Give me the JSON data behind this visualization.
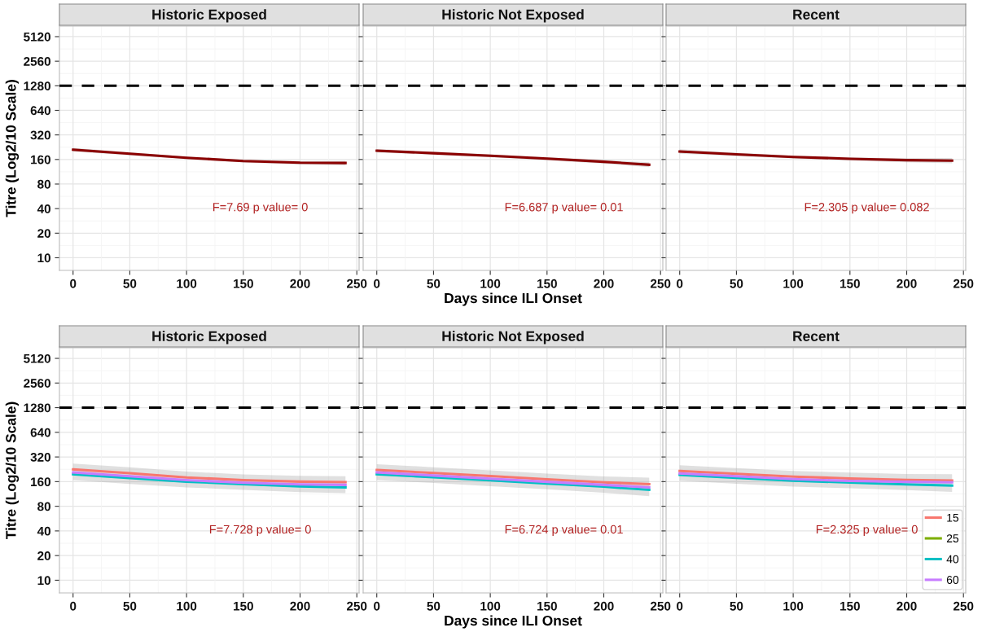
{
  "chart_data": [
    {
      "type": "line",
      "title": "Historic Exposed",
      "ylabel": "Titre (Log2/10 Scale)",
      "xlim": [
        -12,
        252
      ],
      "xticks": [
        0,
        50,
        100,
        150,
        200,
        250
      ],
      "ylim": [
        7,
        6900
      ],
      "yticks": [
        10,
        20,
        40,
        80,
        160,
        320,
        640,
        1280,
        2560,
        5120
      ],
      "log": "y",
      "grid": true,
      "legend": false,
      "ref_lines": [
        {
          "axis": "y",
          "value": 1280,
          "color": "#000000",
          "line_style": "dashed"
        }
      ],
      "annotations": [
        "F=7.69 p value= 0"
      ],
      "series": [
        {
          "color": "#8b0000",
          "x": [
            0,
            50,
            100,
            150,
            200,
            240
          ],
          "values": [
            211,
            188,
            168,
            153,
            146,
            145
          ],
          "lower": [
            200,
            180,
            162,
            147,
            139,
            136
          ],
          "upper": [
            222,
            196,
            174,
            159,
            153,
            154
          ]
        }
      ]
    },
    {
      "type": "line",
      "title": "Historic Not Exposed",
      "xlabel": "Days since ILI Onset",
      "xlim": [
        -12,
        252
      ],
      "xticks": [
        0,
        50,
        100,
        150,
        200,
        250
      ],
      "ylim": [
        7,
        6900
      ],
      "yticks": [
        10,
        20,
        40,
        80,
        160,
        320,
        640,
        1280,
        2560,
        5120
      ],
      "log": "y",
      "grid": true,
      "legend": false,
      "tick_labels": "x",
      "ref_lines": [
        {
          "axis": "y",
          "value": 1280,
          "color": "#000000",
          "line_style": "dashed"
        }
      ],
      "annotations": [
        "F=6.687 p value= 0.01"
      ],
      "series": [
        {
          "color": "#8b0000",
          "x": [
            0,
            50,
            100,
            150,
            200,
            240
          ],
          "values": [
            205,
            191,
            178,
            164,
            150,
            138
          ],
          "lower": [
            195,
            183,
            171,
            157,
            142,
            129
          ],
          "upper": [
            215,
            199,
            185,
            171,
            158,
            148
          ]
        }
      ]
    },
    {
      "type": "line",
      "title": "Recent",
      "xlim": [
        -12,
        252
      ],
      "xticks": [
        0,
        50,
        100,
        150,
        200,
        250
      ],
      "ylim": [
        7,
        6900
      ],
      "yticks": [
        10,
        20,
        40,
        80,
        160,
        320,
        640,
        1280,
        2560,
        5120
      ],
      "log": "y",
      "grid": true,
      "legend": false,
      "tick_labels": "x",
      "ref_lines": [
        {
          "axis": "y",
          "value": 1280,
          "color": "#000000",
          "line_style": "dashed"
        }
      ],
      "annotations": [
        "F=2.305 p value= 0.082"
      ],
      "series": [
        {
          "color": "#8b0000",
          "x": [
            0,
            50,
            100,
            150,
            200,
            240
          ],
          "values": [
            200,
            185,
            172,
            163,
            157,
            155
          ],
          "lower": [
            188,
            176,
            165,
            156,
            148,
            144
          ],
          "upper": [
            213,
            194,
            179,
            170,
            166,
            167
          ]
        }
      ]
    },
    {
      "type": "line",
      "title": "Historic Exposed",
      "ylabel": "Titre (Log2/10 Scale)",
      "xlim": [
        -12,
        252
      ],
      "xticks": [
        0,
        50,
        100,
        150,
        200,
        250
      ],
      "ylim": [
        7,
        6900
      ],
      "yticks": [
        10,
        20,
        40,
        80,
        160,
        320,
        640,
        1280,
        2560,
        5120
      ],
      "log": "y",
      "grid": true,
      "legend": false,
      "ref_lines": [
        {
          "axis": "y",
          "value": 1280,
          "color": "#000000",
          "line_style": "dashed"
        }
      ],
      "annotations": [
        "F=7.728 p value= 0"
      ],
      "series": [
        {
          "color": "#f8766d",
          "x": [
            0,
            50,
            100,
            150,
            200,
            240
          ],
          "values": [
            226,
            203,
            180,
            167,
            160,
            158
          ],
          "lower": [
            167,
            150,
            136,
            127,
            119,
            116
          ],
          "upper": [
            266,
            239,
            212,
            196,
            188,
            186
          ]
        },
        {
          "color": "#00bfc4",
          "x": [
            0,
            50,
            100,
            150,
            200,
            240
          ],
          "values": [
            197,
            177,
            160,
            149,
            140,
            136
          ]
        },
        {
          "color": "#c77cff",
          "x": [
            0,
            50,
            100,
            150,
            200,
            240
          ],
          "values": [
            207,
            186,
            167,
            155,
            148,
            146
          ]
        }
      ]
    },
    {
      "type": "line",
      "title": "Historic Not Exposed",
      "xlabel": "Days since ILI Onset",
      "xlim": [
        -12,
        252
      ],
      "xticks": [
        0,
        50,
        100,
        150,
        200,
        250
      ],
      "ylim": [
        7,
        6900
      ],
      "yticks": [
        10,
        20,
        40,
        80,
        160,
        320,
        640,
        1280,
        2560,
        5120
      ],
      "log": "y",
      "grid": true,
      "legend": false,
      "tick_labels": "x",
      "ref_lines": [
        {
          "axis": "y",
          "value": 1280,
          "color": "#000000",
          "line_style": "dashed"
        }
      ],
      "annotations": [
        "F=6.724 p value= 0.01"
      ],
      "series": [
        {
          "color": "#f8766d",
          "x": [
            0,
            50,
            100,
            150,
            200,
            240
          ],
          "values": [
            222,
            204,
            187,
            171,
            157,
            149
          ],
          "lower": [
            167,
            154,
            141,
            129,
            117,
            106
          ],
          "upper": [
            261,
            240,
            220,
            201,
            185,
            179
          ]
        },
        {
          "color": "#00bfc4",
          "x": [
            0,
            50,
            100,
            150,
            200,
            240
          ],
          "values": [
            197,
            181,
            166,
            152,
            139,
            127
          ]
        },
        {
          "color": "#c77cff",
          "x": [
            0,
            50,
            100,
            150,
            200,
            240
          ],
          "values": [
            207,
            190,
            174,
            159,
            146,
            136
          ]
        }
      ]
    },
    {
      "type": "line",
      "title": "Recent",
      "xlim": [
        -12,
        252
      ],
      "xticks": [
        0,
        50,
        100,
        150,
        200,
        250
      ],
      "ylim": [
        7,
        6900
      ],
      "yticks": [
        10,
        20,
        40,
        80,
        160,
        320,
        640,
        1280,
        2560,
        5120
      ],
      "log": "y",
      "grid": true,
      "legend": "bottom right",
      "tick_labels": "x",
      "ref_lines": [
        {
          "axis": "y",
          "value": 1280,
          "color": "#000000",
          "line_style": "dashed"
        }
      ],
      "annotations": [
        "F=2.325 p value= 0"
      ],
      "series": [
        {
          "name": "15",
          "color": "#f8766d",
          "x": [
            0,
            50,
            100,
            150,
            200,
            240
          ],
          "values": [
            216,
            199,
            184,
            175,
            168,
            165
          ],
          "lower": [
            164,
            151,
            139,
            133,
            126,
            120
          ],
          "upper": [
            254,
            234,
            216,
            206,
            198,
            197
          ]
        },
        {
          "name": "25",
          "color": "#7cae00"
        },
        {
          "name": "40",
          "color": "#00bfc4",
          "x": [
            0,
            50,
            100,
            150,
            200,
            240
          ],
          "values": [
            193,
            178,
            164,
            156,
            148,
            143
          ]
        },
        {
          "name": "60",
          "color": "#c77cff",
          "x": [
            0,
            50,
            100,
            150,
            200,
            240
          ],
          "values": [
            201,
            186,
            172,
            163,
            159,
            157
          ]
        }
      ]
    }
  ]
}
